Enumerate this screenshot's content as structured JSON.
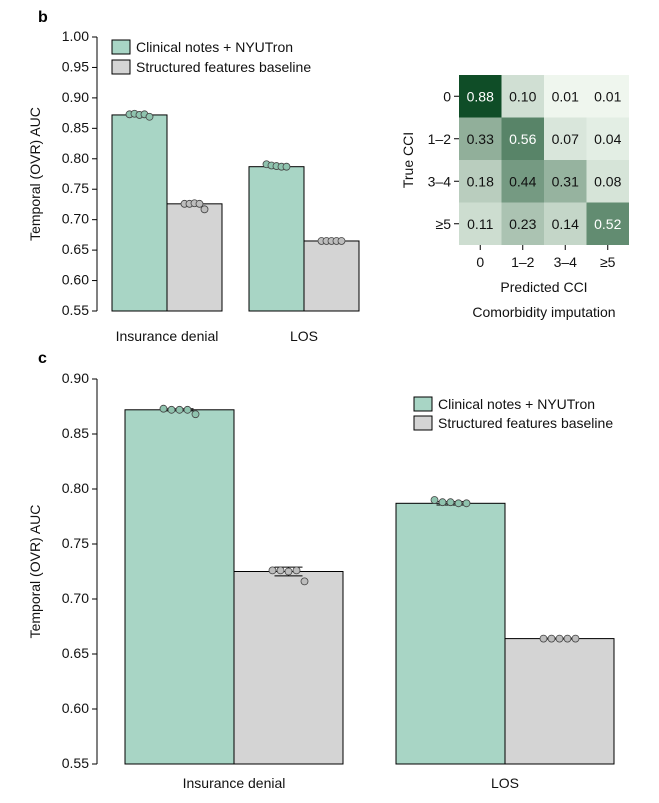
{
  "colors": {
    "nyutron": "#a8d5c5",
    "baseline": "#d4d4d4",
    "dot_nyutron": "#8fc3ae",
    "dot_baseline": "#bdbdbd",
    "heat_low": "#f4faf3",
    "heat_high": "#0b4a23"
  },
  "chart_data": [
    {
      "panel": "b",
      "type": "bar",
      "title": "",
      "xlabel": "",
      "ylabel": "Temporal (OVR) AUC",
      "ylim": [
        0.55,
        1.0
      ],
      "yticks": [
        "0.55",
        "0.60",
        "0.65",
        "0.70",
        "0.75",
        "0.80",
        "0.85",
        "0.90",
        "0.95",
        "1.00"
      ],
      "categories": [
        "Insurance denial",
        "LOS"
      ],
      "legend_position": "top-left",
      "series": [
        {
          "name": "Clinical notes + NYUTron",
          "values": [
            0.872,
            0.787
          ],
          "err": [
            0.001,
            0.0015
          ],
          "points": [
            [
              0.873,
              0.874,
              0.872,
              0.873,
              0.869
            ],
            [
              0.791,
              0.789,
              0.788,
              0.787,
              0.787
            ]
          ]
        },
        {
          "name": "Structured features baseline",
          "values": [
            0.726,
            0.665
          ],
          "err": [
            0.003,
            0.0005
          ],
          "points": [
            [
              0.726,
              0.726,
              0.727,
              0.726,
              0.717
            ],
            [
              0.665,
              0.665,
              0.665,
              0.665,
              0.665
            ]
          ]
        }
      ]
    },
    {
      "panel": "b",
      "type": "heatmap",
      "title": "Comorbidity imputation",
      "xlabel": "Predicted CCI",
      "ylabel": "True CCI",
      "x_categories": [
        "0",
        "1–2",
        "3–4",
        "≥5"
      ],
      "y_categories": [
        "0",
        "1–2",
        "3–4",
        "≥5"
      ],
      "values": [
        [
          0.88,
          0.1,
          0.01,
          0.01
        ],
        [
          0.33,
          0.56,
          0.07,
          0.04
        ],
        [
          0.18,
          0.44,
          0.31,
          0.08
        ],
        [
          0.11,
          0.23,
          0.14,
          0.52
        ]
      ],
      "labels": [
        [
          "0.88",
          "0.10",
          "0.01",
          "0.01"
        ],
        [
          "0.33",
          "0.56",
          "0.07",
          "0.04"
        ],
        [
          "0.18",
          "0.44",
          "0.31",
          "0.08"
        ],
        [
          "0.11",
          "0.23",
          "0.14",
          "0.52"
        ]
      ]
    },
    {
      "panel": "c",
      "type": "bar",
      "title": "",
      "xlabel": "",
      "ylabel": "Temporal (OVR) AUC",
      "ylim": [
        0.55,
        0.9
      ],
      "yticks": [
        "0.55",
        "0.60",
        "0.65",
        "0.70",
        "0.75",
        "0.80",
        "0.85",
        "0.90"
      ],
      "categories": [
        "Insurance denial",
        "LOS"
      ],
      "legend_position": "top-right",
      "series": [
        {
          "name": "Clinical notes + NYUTron",
          "values": [
            0.872,
            0.787
          ],
          "err": [
            0.001,
            0.0015
          ],
          "points": [
            [
              0.873,
              0.872,
              0.872,
              0.872,
              0.868
            ],
            [
              0.79,
              0.788,
              0.788,
              0.787,
              0.787
            ]
          ]
        },
        {
          "name": "Structured features baseline",
          "values": [
            0.725,
            0.664
          ],
          "err": [
            0.004,
            0.0005
          ],
          "points": [
            [
              0.726,
              0.726,
              0.725,
              0.726,
              0.716
            ],
            [
              0.664,
              0.664,
              0.664,
              0.664,
              0.664
            ]
          ]
        }
      ]
    }
  ]
}
